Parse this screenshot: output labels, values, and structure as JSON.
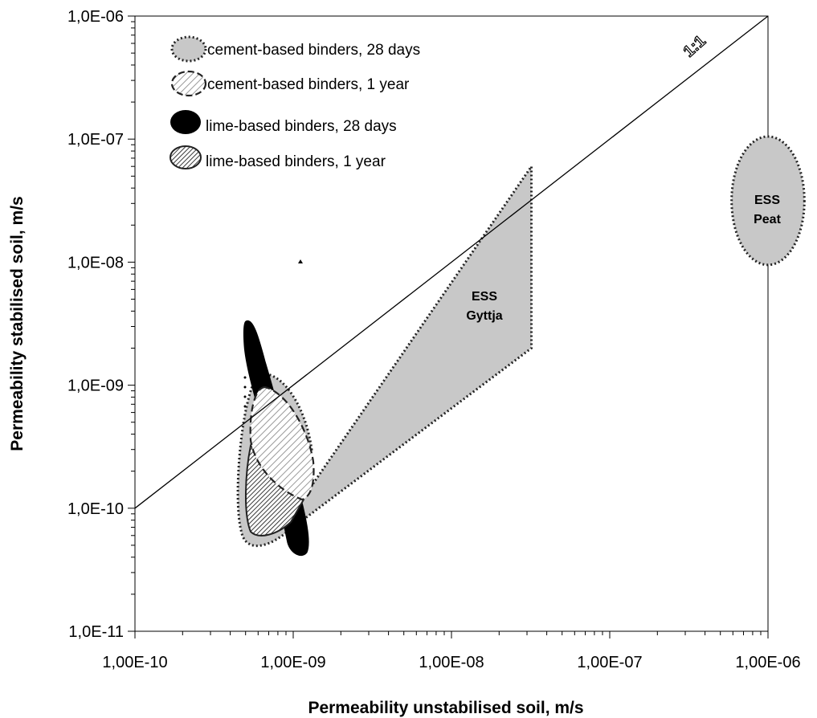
{
  "chart_data": {
    "type": "scatter",
    "x_scale": "log",
    "y_scale": "log",
    "xlabel": "Permeability unstabilised soil, m/s",
    "ylabel": "Permeability stabilised soil, m/s",
    "xlim": [
      1e-10,
      1e-06
    ],
    "ylim": [
      1e-11,
      1e-06
    ],
    "x_ticks": [
      1e-10,
      1e-09,
      1e-08,
      1e-07,
      1e-06
    ],
    "x_tick_labels": [
      "1,00E-10",
      "1,00E-09",
      "1,00E-08",
      "1,00E-07",
      "1,00E-06"
    ],
    "y_ticks": [
      1e-11,
      1e-10,
      1e-09,
      1e-08,
      1e-07,
      1e-06
    ],
    "y_tick_labels": [
      "1,0E-11",
      "1,0E-10",
      "1,0E-09",
      "1,0E-08",
      "1,0E-07",
      "1,0E-06"
    ],
    "grid": false,
    "legend_position": "top-left",
    "reference_line": {
      "label": "1:1",
      "x": [
        1e-10,
        1e-06
      ],
      "y": [
        1e-10,
        1e-06
      ]
    },
    "legend": [
      {
        "label": "cement-based binders, 28 days",
        "style": "grey fill, dotted outline"
      },
      {
        "label": "cement-based binders, 1 year",
        "style": "light hatch, dashed outline"
      },
      {
        "label": "lime-based binders, 28 days",
        "style": "black fill"
      },
      {
        "label": "lime-based binders, 1 year",
        "style": "dense hatch, solid outline"
      }
    ],
    "regions": [
      {
        "label_lines": [
          "ESS",
          "Gyttja"
        ],
        "series": "cement-based binders, 28 days",
        "polygon": [
          [
            1e-09,
            7e-11
          ],
          [
            3.2e-08,
            2e-09
          ],
          [
            3.2e-08,
            6e-08
          ],
          [
            1.15e-09,
            1.2e-10
          ]
        ]
      },
      {
        "label_lines": [
          "ESS",
          "Peat"
        ],
        "series": "cement-based binders, 28 days",
        "ellipse": {
          "cx": 1e-06,
          "cy_range": [
            9.5e-09,
            1.05e-07
          ],
          "x_half_width_decades": 0.23
        }
      }
    ],
    "colors": {
      "grey": "#c8c8c8",
      "black": "#000000",
      "outline": "#222222"
    }
  }
}
